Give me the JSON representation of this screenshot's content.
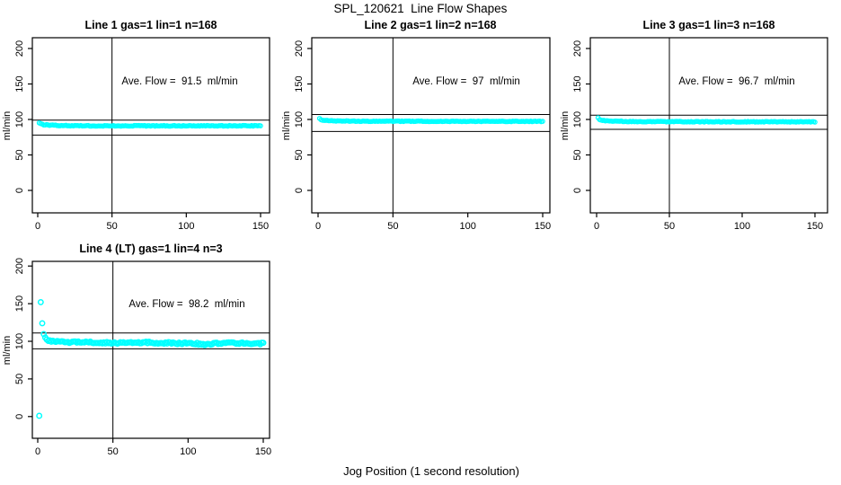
{
  "figure": {
    "title": "SPL_120621  Line Flow Shapes",
    "xlabel": "Jog Position (1 second resolution)",
    "background": "#ffffff",
    "axis_color": "#000000",
    "point_color": "#00ffff"
  },
  "chart_data": [
    {
      "type": "scatter",
      "title": "Line 1 gas=1 lin=1 n=168",
      "annotation": "Ave. Flow =  91.5  ml/min",
      "ave_flow_ml_min": 91.5,
      "gas": 1,
      "lin": 1,
      "n": 168,
      "ylabel": "ml/min",
      "x_ticks": [
        0,
        50,
        100,
        150
      ],
      "y_ticks": [
        0,
        50,
        100,
        150,
        200
      ],
      "xlim": [
        -6,
        156
      ],
      "ylim": [
        -30,
        218
      ],
      "vline_x": 50,
      "hline_upper": 99,
      "hline_lower": 78,
      "x_start": 1,
      "x_end": 150,
      "profile": [
        [
          1,
          95.5
        ],
        [
          2,
          94
        ],
        [
          4,
          92.5
        ],
        [
          8,
          92
        ],
        [
          15,
          91.5
        ],
        [
          30,
          91
        ],
        [
          150,
          91
        ]
      ],
      "noise": 0.5,
      "outliers": [],
      "marker_radius": 2.2
    },
    {
      "type": "scatter",
      "title": "Line 2 gas=1 lin=2 n=168",
      "annotation": "Ave. Flow =  97  ml/min",
      "ave_flow_ml_min": 97,
      "gas": 1,
      "lin": 2,
      "n": 168,
      "ylabel": "ml/min",
      "x_ticks": [
        0,
        50,
        100,
        150
      ],
      "y_ticks": [
        0,
        50,
        100,
        150,
        200
      ],
      "xlim": [
        -6,
        156
      ],
      "ylim": [
        -30,
        218
      ],
      "vline_x": 50,
      "hline_upper": 107,
      "hline_lower": 83,
      "x_start": 1,
      "x_end": 150,
      "profile": [
        [
          1,
          101
        ],
        [
          2,
          99.5
        ],
        [
          4,
          98.5
        ],
        [
          10,
          98
        ],
        [
          30,
          97.5
        ],
        [
          150,
          97.3
        ]
      ],
      "noise": 0.45,
      "outliers": [],
      "marker_radius": 2.2
    },
    {
      "type": "scatter",
      "title": "Line 3 gas=1 lin=3 n=168",
      "annotation": "Ave. Flow =  96.7  ml/min",
      "ave_flow_ml_min": 96.7,
      "gas": 1,
      "lin": 3,
      "n": 168,
      "ylabel": "ml/min",
      "x_ticks": [
        0,
        50,
        100,
        150
      ],
      "y_ticks": [
        0,
        50,
        100,
        150,
        200
      ],
      "xlim": [
        -6,
        156
      ],
      "ylim": [
        -30,
        218
      ],
      "vline_x": 50,
      "hline_upper": 106,
      "hline_lower": 86,
      "x_start": 1,
      "x_end": 150,
      "profile": [
        [
          1,
          102
        ],
        [
          2,
          100
        ],
        [
          4,
          98.5
        ],
        [
          10,
          97.5
        ],
        [
          30,
          97
        ],
        [
          150,
          96.6
        ]
      ],
      "noise": 0.5,
      "outliers": [],
      "marker_radius": 2.2
    },
    {
      "type": "scatter",
      "title": "Line 4 (LT) gas=1 lin=4 n=3",
      "annotation": "Ave. Flow =  98.2  ml/min",
      "ave_flow_ml_min": 98.2,
      "gas": 1,
      "lin": 4,
      "n": 3,
      "ylabel": "ml/min",
      "x_ticks": [
        0,
        50,
        100,
        150
      ],
      "y_ticks": [
        0,
        50,
        100,
        150,
        200
      ],
      "xlim": [
        -6,
        156
      ],
      "ylim": [
        -30,
        210
      ],
      "vline_x": 50,
      "hline_upper": 111,
      "hline_lower": 90,
      "x_start": 4,
      "x_end": 150,
      "profile": [
        [
          4,
          110
        ],
        [
          5,
          104
        ],
        [
          6,
          102
        ],
        [
          8,
          100.5
        ],
        [
          12,
          99.5
        ],
        [
          20,
          98.8
        ],
        [
          40,
          98.3
        ],
        [
          60,
          98
        ],
        [
          75,
          98.5
        ],
        [
          90,
          97.5
        ],
        [
          105,
          97
        ],
        [
          112,
          95.8
        ],
        [
          122,
          97.5
        ],
        [
          135,
          97.8
        ],
        [
          150,
          97
        ]
      ],
      "noise": 1.2,
      "outliers": [
        [
          1,
          1
        ],
        [
          2,
          152
        ],
        [
          3,
          124
        ]
      ],
      "marker_radius": 2.7
    }
  ]
}
